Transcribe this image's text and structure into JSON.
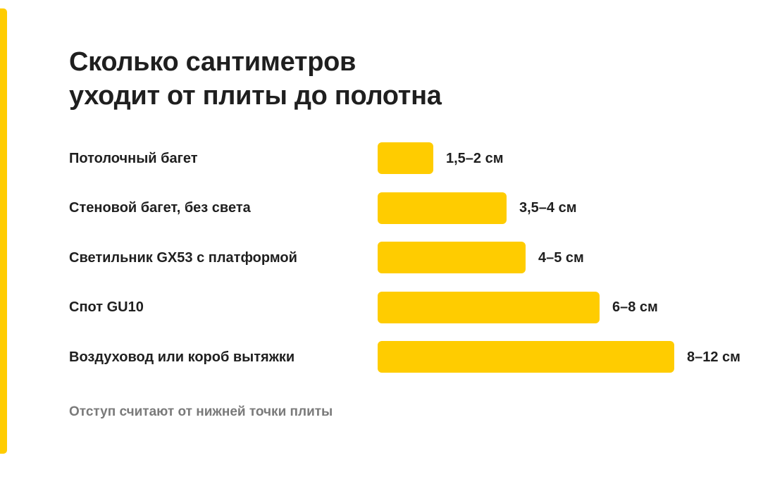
{
  "title": {
    "line1": "Сколько сантиметров",
    "line2": "уходит от плиты до полотна"
  },
  "footnote": "Отступ считают от нижней точки плиты",
  "colors": {
    "accent": "#ffcc00",
    "bar": "#ffcc00",
    "text": "#1f1f1f",
    "muted": "#7a7a7a"
  },
  "chart_data": {
    "type": "bar",
    "orientation": "horizontal",
    "categories": [
      "Потолочный багет",
      "Стеновой багет, без света",
      "Светильник GX53 с платформой",
      "Спот GU10",
      "Воздуховод или короб вытяжки"
    ],
    "values": [
      2,
      4,
      5,
      8,
      12
    ],
    "value_labels": [
      "1,5–2 см",
      "3,5–4 см",
      "4–5 см",
      "6–8 см",
      "8–12 см"
    ],
    "xlim": [
      0,
      12
    ],
    "grid": false
  }
}
